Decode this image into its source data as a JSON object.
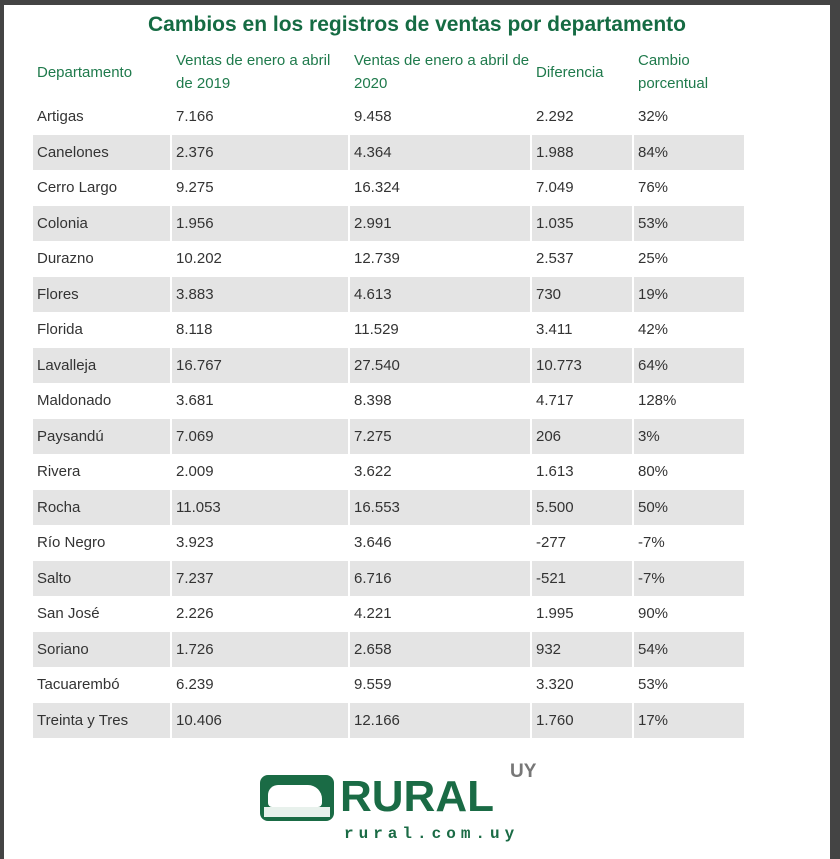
{
  "title": "Cambios en los registros de ventas por departamento",
  "headers": [
    "Departamento",
    "Ventas de enero a abril de 2019",
    "Ventas de enero a abril de 2020",
    "Diferencia",
    "Cambio porcentual"
  ],
  "rows": [
    [
      "Artigas",
      "7.166",
      "9.458",
      "2.292",
      "32%"
    ],
    [
      "Canelones",
      "2.376",
      "4.364",
      "1.988",
      "84%"
    ],
    [
      "Cerro Largo",
      "9.275",
      "16.324",
      "7.049",
      "76%"
    ],
    [
      "Colonia",
      "1.956",
      "2.991",
      "1.035",
      "53%"
    ],
    [
      "Durazno",
      "10.202",
      "12.739",
      "2.537",
      "25%"
    ],
    [
      "Flores",
      "3.883",
      "4.613",
      "730",
      "19%"
    ],
    [
      "Florida",
      "8.118",
      "11.529",
      "3.411",
      "42%"
    ],
    [
      "Lavalleja",
      "16.767",
      "27.540",
      "10.773",
      "64%"
    ],
    [
      "Maldonado",
      "3.681",
      "8.398",
      "4.717",
      "128%"
    ],
    [
      "Paysandú",
      "7.069",
      "7.275",
      "206",
      "3%"
    ],
    [
      "Rivera",
      "2.009",
      "3.622",
      "1.613",
      "80%"
    ],
    [
      "Rocha",
      "11.053",
      "16.553",
      "5.500",
      "50%"
    ],
    [
      "Río Negro",
      "3.923",
      "3.646",
      "-277",
      "-7%"
    ],
    [
      "Salto",
      "7.237",
      "6.716",
      "-521",
      "-7%"
    ],
    [
      "San José",
      "2.226",
      "4.221",
      "1.995",
      "90%"
    ],
    [
      "Soriano",
      "1.726",
      "2.658",
      "932",
      "54%"
    ],
    [
      "Tacuarembó",
      "6.239",
      "9.559",
      "3.320",
      "53%"
    ],
    [
      "Treinta y Tres",
      "10.406",
      "12.166",
      "1.760",
      "17%"
    ]
  ],
  "logo": {
    "brand": "RURAL",
    "country": "UY",
    "url": "rural.com.uy"
  },
  "colors": {
    "accent": "#156b43",
    "row_alt": "#e4e4e4"
  }
}
